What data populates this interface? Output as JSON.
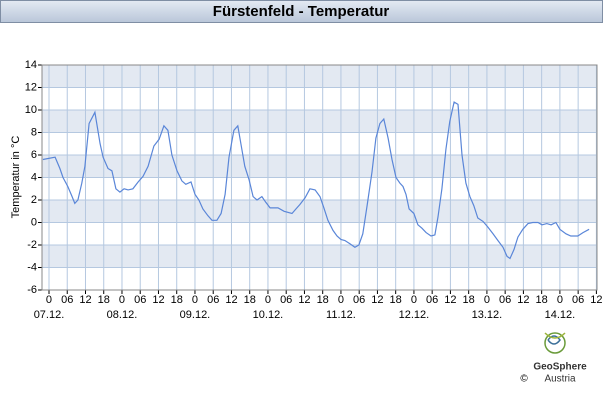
{
  "chart_data": {
    "type": "line",
    "title": "Fürstenfeld - Temperatur",
    "ylabel": "Temperatur in °C",
    "footer": {
      "brand": "GeoSphere",
      "sub": "Austria",
      "copyright": "©"
    },
    "xlim": [
      -2.3,
      180.2
    ],
    "ylim": [
      -6,
      14
    ],
    "yticks": [
      -6,
      -4,
      -2,
      0,
      2,
      4,
      6,
      8,
      10,
      12,
      14
    ],
    "xticks": [
      0,
      {
        "value": 6,
        "label": "06"
      },
      12,
      18,
      {
        "value": 24,
        "label": "0"
      },
      {
        "value": 30,
        "label": "06"
      },
      {
        "value": 36,
        "label": "12"
      },
      {
        "value": 42,
        "label": "18"
      },
      {
        "value": 48,
        "label": "0"
      },
      {
        "value": 54,
        "label": "06"
      },
      {
        "value": 60,
        "label": "12"
      },
      {
        "value": 66,
        "label": "18"
      },
      {
        "value": 72,
        "label": "0"
      },
      {
        "value": 78,
        "label": "06"
      },
      {
        "value": 84,
        "label": "12"
      },
      {
        "value": 90,
        "label": "18"
      },
      {
        "value": 96,
        "label": "0"
      },
      {
        "value": 102,
        "label": "06"
      },
      {
        "value": 108,
        "label": "12"
      },
      {
        "value": 114,
        "label": "18"
      },
      {
        "value": 120,
        "label": "0"
      },
      {
        "value": 126,
        "label": "06"
      },
      {
        "value": 132,
        "label": "12"
      },
      {
        "value": 138,
        "label": "18"
      },
      {
        "value": 144,
        "label": "0"
      },
      {
        "value": 150,
        "label": "06"
      },
      {
        "value": 156,
        "label": "12"
      },
      {
        "value": 162,
        "label": "18"
      },
      {
        "value": 168,
        "label": "0"
      },
      {
        "value": 174,
        "label": "06"
      },
      {
        "value": 180,
        "label": "12"
      }
    ],
    "day_labels": [
      {
        "value": 0,
        "label": "07.12."
      },
      {
        "value": 24,
        "label": "08.12."
      },
      {
        "value": 48,
        "label": "09.12."
      },
      {
        "value": 72,
        "label": "10.12."
      },
      {
        "value": 96,
        "label": "11.12."
      },
      {
        "value": 120,
        "label": "12.12."
      },
      {
        "value": 144,
        "label": "13.12."
      },
      {
        "value": 168,
        "label": "14.12."
      }
    ],
    "grid": true,
    "series": [
      {
        "color": "#5a86d8",
        "x": [
          -2,
          2,
          3.6,
          4.6,
          6.2,
          7.6,
          8.5,
          9.5,
          10.8,
          11.8,
          13.2,
          15.1,
          16.8,
          17.8,
          19.4,
          20.7,
          22,
          23.3,
          24.7,
          26,
          27.6,
          29.3,
          30.9,
          32.6,
          34.5,
          36.2,
          37.8,
          39.1,
          40.4,
          42.1,
          43.7,
          45,
          46.7,
          48,
          49.3,
          50.6,
          52.3,
          53.6,
          55.2,
          56.6,
          57.9,
          59.2,
          60.8,
          62.1,
          63.1,
          64.4,
          65.8,
          67.1,
          68.4,
          70,
          71.3,
          72.7,
          75.3,
          77.3,
          79.9,
          81.2,
          82.5,
          84.2,
          85.8,
          87.5,
          89.1,
          90.4,
          91.7,
          93.4,
          94.7,
          96,
          97.3,
          99,
          100.6,
          101.9,
          103.2,
          104.6,
          106.2,
          107.5,
          108.8,
          110.1,
          111.5,
          112.8,
          114.1,
          115.4,
          116.4,
          117.4,
          118.4,
          120,
          121.3,
          122.6,
          124,
          125.6,
          126.9,
          127.9,
          129.2,
          130.5,
          131.8,
          133.2,
          134.5,
          135.8,
          137.1,
          138.4,
          139.7,
          141,
          142.7,
          144.3,
          146,
          147.6,
          149.3,
          150.6,
          151.6,
          152.9,
          154.2,
          155.8,
          157.5,
          159.1,
          160.8,
          162.1,
          163.7,
          165.1,
          166.7,
          168,
          170,
          171.6,
          173.9,
          175.6,
          177.6
        ],
        "values": [
          5.6,
          5.8,
          4.8,
          4.0,
          3.2,
          2.3,
          1.7,
          2.0,
          3.5,
          5,
          8.8,
          9.8,
          7,
          5.8,
          4.8,
          4.6,
          3,
          2.7,
          3.0,
          2.9,
          3.0,
          3.6,
          4.1,
          5,
          6.8,
          7.4,
          8.6,
          8.2,
          6.0,
          4.6,
          3.7,
          3.4,
          3.6,
          2.5,
          2,
          1.2,
          0.6,
          0.2,
          0.2,
          0.8,
          2.5,
          5.8,
          8.2,
          8.6,
          7.0,
          5,
          3.8,
          2.3,
          2.0,
          2.3,
          1.8,
          1.3,
          1.3,
          1.0,
          0.8,
          1.2,
          1.6,
          2.2,
          3.0,
          2.9,
          2.3,
          1.3,
          0.2,
          -0.7,
          -1.2,
          -1.5,
          -1.6,
          -1.9,
          -2.2,
          -2.0,
          -1.0,
          1.5,
          4.5,
          7.5,
          8.8,
          9.2,
          7.5,
          5.6,
          4.0,
          3.5,
          3.2,
          2.5,
          1.2,
          0.8,
          -0.2,
          -0.5,
          -0.9,
          -1.2,
          -1.1,
          0.5,
          3.0,
          6.5,
          9,
          10.7,
          10.5,
          6,
          3.5,
          2.3,
          1.5,
          0.4,
          0.1,
          -0.4,
          -1.0,
          -1.6,
          -2.2,
          -3.0,
          -3.2,
          -2.4,
          -1.3,
          -0.6,
          -0.1,
          0,
          0,
          -0.2,
          -0.1,
          -0.2,
          0,
          -0.6,
          -1.0,
          -1.2,
          -1.2,
          -0.9,
          -0.6
        ]
      }
    ]
  }
}
